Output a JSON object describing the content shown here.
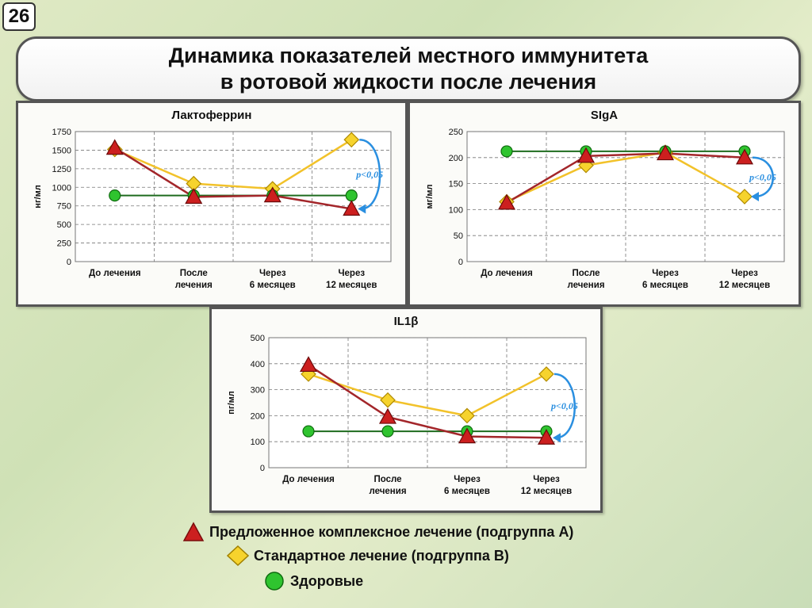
{
  "slide_number": "26",
  "title": {
    "line1": "Динамика показателей местного иммунитета",
    "line2": "в ротовой жидкости после лечения"
  },
  "colors": {
    "subgroup_a": "#b22222",
    "subgroup_b": "#f4c430",
    "healthy": "#22a022",
    "healthy_line": "#1e6b1e",
    "annotation": "#2a8fe0"
  },
  "chart_data": [
    {
      "type": "line",
      "title": "Лактоферрин",
      "ylabel": "нг/мл",
      "categories": [
        "До лечения",
        "После лечения",
        "Через 6 месяцев",
        "Через 12 месяцев"
      ],
      "category_lines": [
        [
          "До лечения"
        ],
        [
          "После",
          "лечения"
        ],
        [
          "Через",
          "6 месяцев"
        ],
        [
          "Через",
          "12 месяцев"
        ]
      ],
      "ylim": [
        0,
        1750
      ],
      "yticks": [
        0,
        250,
        500,
        750,
        1000,
        1250,
        1500,
        1750
      ],
      "series": [
        {
          "name": "Стандартное лечение (подгруппа B)",
          "key": "b",
          "values": [
            1510,
            1050,
            980,
            1640
          ]
        },
        {
          "name": "Здоровые",
          "key": "h",
          "values": [
            890,
            890,
            890,
            890
          ]
        },
        {
          "name": "Предложенное комплексное лечение (подгруппа А)",
          "key": "a",
          "values": [
            1530,
            870,
            890,
            710
          ]
        }
      ],
      "annotation": "p<0,05"
    },
    {
      "type": "line",
      "title": "SIgA",
      "ylabel": "мг/мл",
      "categories": [
        "До лечения",
        "После лечения",
        "Через 6 месяцев",
        "Через 12 месяцев"
      ],
      "category_lines": [
        [
          "До лечения"
        ],
        [
          "После",
          "лечения"
        ],
        [
          "Через",
          "6 месяцев"
        ],
        [
          "Через",
          "12 месяцев"
        ]
      ],
      "ylim": [
        0,
        250
      ],
      "yticks": [
        0,
        50,
        100,
        150,
        200,
        250
      ],
      "series": [
        {
          "name": "Стандартное лечение (подгруппа B)",
          "key": "b",
          "values": [
            115,
            185,
            210,
            125
          ]
        },
        {
          "name": "Здоровые",
          "key": "h",
          "values": [
            212,
            212,
            212,
            212
          ]
        },
        {
          "name": "Предложенное комплексное лечение (подгруппа А)",
          "key": "a",
          "values": [
            113,
            203,
            208,
            200
          ]
        }
      ],
      "annotation": "p<0,05"
    },
    {
      "type": "line",
      "title": "IL1β",
      "ylabel": "пг/мл",
      "categories": [
        "До лечения",
        "После лечения",
        "Через 6 месяцев",
        "Через 12 месяцев"
      ],
      "category_lines": [
        [
          "До лечения"
        ],
        [
          "После",
          "лечения"
        ],
        [
          "Через",
          "6 месяцев"
        ],
        [
          "Через",
          "12 месяцев"
        ]
      ],
      "ylim": [
        0,
        500
      ],
      "yticks": [
        0,
        100,
        200,
        300,
        400,
        500
      ],
      "series": [
        {
          "name": "Стандартное лечение (подгруппа B)",
          "key": "b",
          "values": [
            360,
            260,
            200,
            360
          ]
        },
        {
          "name": "Здоровые",
          "key": "h",
          "values": [
            140,
            140,
            140,
            140
          ]
        },
        {
          "name": "Предложенное комплексное лечение (подгруппа А)",
          "key": "a",
          "values": [
            395,
            195,
            120,
            115
          ]
        }
      ],
      "annotation": "p<0,05"
    }
  ],
  "legend": [
    {
      "key": "a",
      "marker": "triangle",
      "label": "Предложенное комплексное лечение (подгруппа А)"
    },
    {
      "key": "b",
      "marker": "diamond",
      "label": "Стандартное лечение (подгруппа B)"
    },
    {
      "key": "h",
      "marker": "circle",
      "label": "Здоровые"
    }
  ]
}
